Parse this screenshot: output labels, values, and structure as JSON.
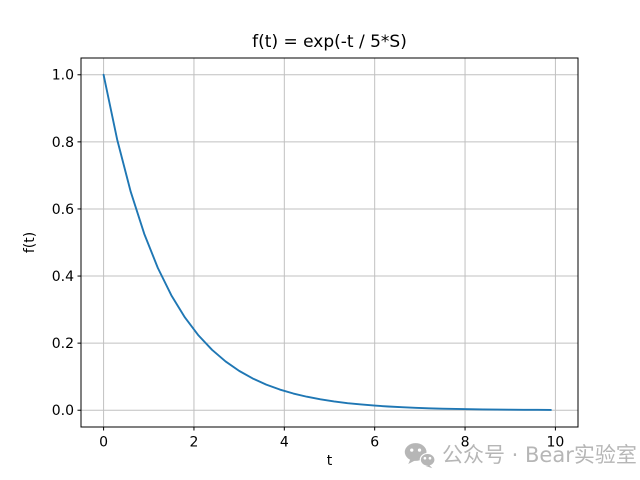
{
  "chart_data": {
    "type": "line",
    "title": "f(t) = exp(-t / 5*S)",
    "xlabel": "t",
    "ylabel": "f(t)",
    "xlim": [
      -0.5,
      10.5
    ],
    "ylim": [
      -0.05,
      1.05
    ],
    "grid": true,
    "grid_color": "#c0c0c0",
    "spine_color": "#000000",
    "background": "#ffffff",
    "legend": "none",
    "x_ticks": {
      "values": [
        0,
        2,
        4,
        6,
        8,
        10
      ],
      "labels": [
        "0",
        "2",
        "4",
        "6",
        "8",
        "10"
      ]
    },
    "y_ticks": {
      "values": [
        0.0,
        0.2,
        0.4,
        0.6,
        0.8,
        1.0
      ],
      "labels": [
        "0.0",
        "0.2",
        "0.4",
        "0.6",
        "0.8",
        "1.0"
      ]
    },
    "series": [
      {
        "name": "exp(-t / 5*S)",
        "color": "#1f77b4",
        "x": [
          0,
          0.3,
          0.6,
          0.9,
          1.2,
          1.5,
          1.8,
          2.1,
          2.4,
          2.7,
          3.0,
          3.3,
          3.6,
          3.9,
          4.2,
          4.5,
          4.8,
          5.1,
          5.4,
          5.7,
          6.0,
          6.3,
          6.6,
          6.9,
          7.2,
          7.5,
          7.8,
          8.1,
          8.4,
          8.7,
          9.0,
          9.3,
          9.6,
          9.9
        ],
        "y": [
          1.0,
          0.8071,
          0.6514,
          0.5258,
          0.4244,
          0.3425,
          0.2765,
          0.2231,
          0.1801,
          0.1454,
          0.1173,
          0.0947,
          0.0764,
          0.0617,
          0.0498,
          0.0402,
          0.0324,
          0.0262,
          0.0211,
          0.0171,
          0.0138,
          0.0111,
          0.009,
          0.0072,
          0.0058,
          0.0047,
          0.0038,
          0.0031,
          0.0025,
          0.002,
          0.0016,
          0.0013,
          0.0011,
          0.0008
        ]
      }
    ]
  },
  "watermark": {
    "icon": "wechat",
    "text": "公众号 · Bear实验室",
    "color": "#b6b6b6"
  }
}
